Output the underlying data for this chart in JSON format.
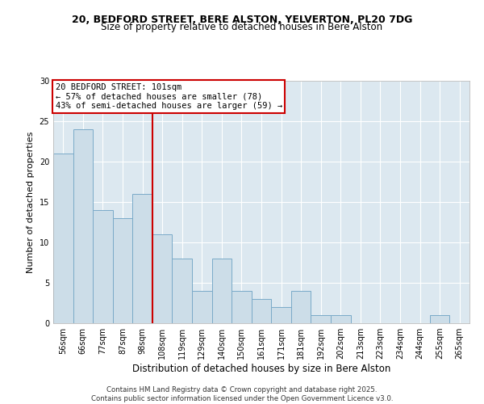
{
  "title1": "20, BEDFORD STREET, BERE ALSTON, YELVERTON, PL20 7DG",
  "title2": "Size of property relative to detached houses in Bere Alston",
  "xlabel": "Distribution of detached houses by size in Bere Alston",
  "ylabel": "Number of detached properties",
  "bar_labels": [
    "56sqm",
    "66sqm",
    "77sqm",
    "87sqm",
    "98sqm",
    "108sqm",
    "119sqm",
    "129sqm",
    "140sqm",
    "150sqm",
    "161sqm",
    "171sqm",
    "181sqm",
    "192sqm",
    "202sqm",
    "213sqm",
    "223sqm",
    "234sqm",
    "244sqm",
    "255sqm",
    "265sqm"
  ],
  "bar_values": [
    21,
    24,
    14,
    13,
    16,
    11,
    8,
    4,
    8,
    4,
    3,
    2,
    4,
    1,
    1,
    0,
    0,
    0,
    0,
    1,
    0
  ],
  "bar_color": "#ccdde8",
  "bar_edge_color": "#7aaac8",
  "vline_x_idx": 5,
  "vline_color": "#cc0000",
  "annotation_text": "20 BEDFORD STREET: 101sqm\n← 57% of detached houses are smaller (78)\n43% of semi-detached houses are larger (59) →",
  "annotation_box_color": "#ffffff",
  "annotation_box_edge": "#cc0000",
  "ylim": [
    0,
    30
  ],
  "yticks": [
    0,
    5,
    10,
    15,
    20,
    25,
    30
  ],
  "background_color": "#dce8f0",
  "footer_text": "Contains HM Land Registry data © Crown copyright and database right 2025.\nContains public sector information licensed under the Open Government Licence v3.0.",
  "title_fontsize": 9,
  "subtitle_fontsize": 8.5,
  "tick_fontsize": 7,
  "ylabel_fontsize": 8,
  "xlabel_fontsize": 8.5,
  "annotation_fontsize": 7.5
}
